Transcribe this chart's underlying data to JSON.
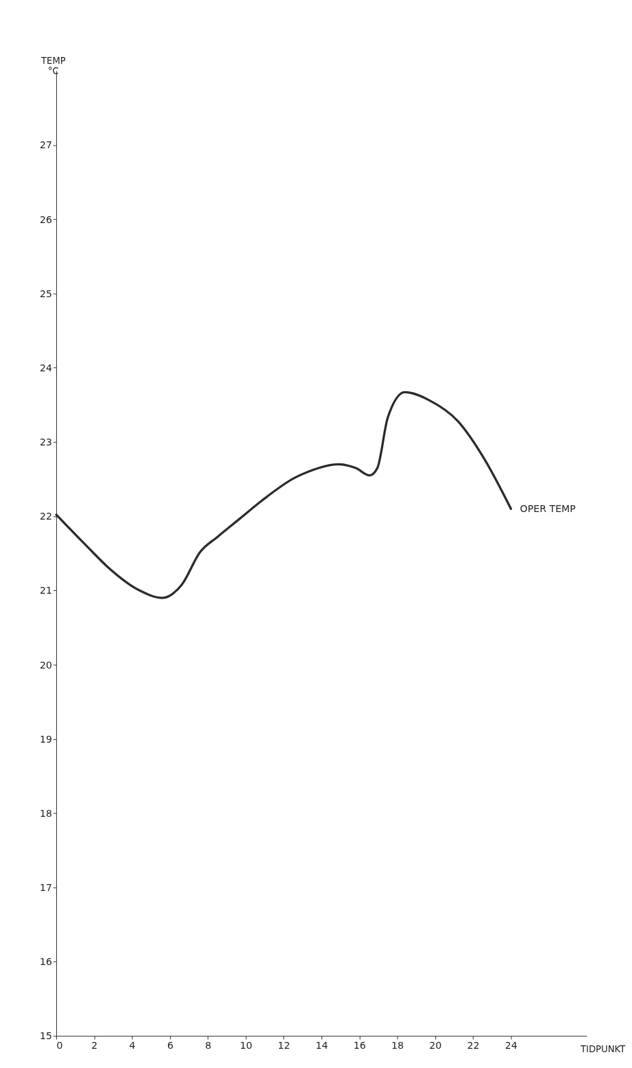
{
  "chart_data": {
    "type": "line",
    "xlabel": "TIDPUNKT",
    "ylabel": "TEMP\n°C",
    "xlim": [
      0,
      28
    ],
    "ylim": [
      15,
      28
    ],
    "xticks": [
      0,
      2,
      4,
      6,
      8,
      10,
      12,
      14,
      16,
      18,
      20,
      22,
      24
    ],
    "yticks": [
      15,
      16,
      17,
      18,
      19,
      20,
      21,
      22,
      23,
      24,
      25,
      26,
      27
    ],
    "grid": false,
    "marker": "none",
    "line_style": "solid",
    "series": [
      {
        "name": "OPER TEMP",
        "color": "#2b2b2b",
        "x": [
          0,
          1.6,
          2.7,
          4.4,
          5.6,
          6.6,
          7.6,
          8.5,
          9.7,
          10.8,
          12.6,
          13.3,
          14.9,
          15.8,
          16.55,
          16.95,
          17.5,
          18.4,
          19.7,
          21.2,
          22.6,
          24
        ],
        "values": [
          22.02,
          21.6,
          21.32,
          21.0,
          20.9,
          21.07,
          21.52,
          21.72,
          21.97,
          22.2,
          22.52,
          22.6,
          22.7,
          22.65,
          22.55,
          22.65,
          23.33,
          23.67,
          23.56,
          23.28,
          22.77,
          22.1
        ]
      }
    ]
  }
}
